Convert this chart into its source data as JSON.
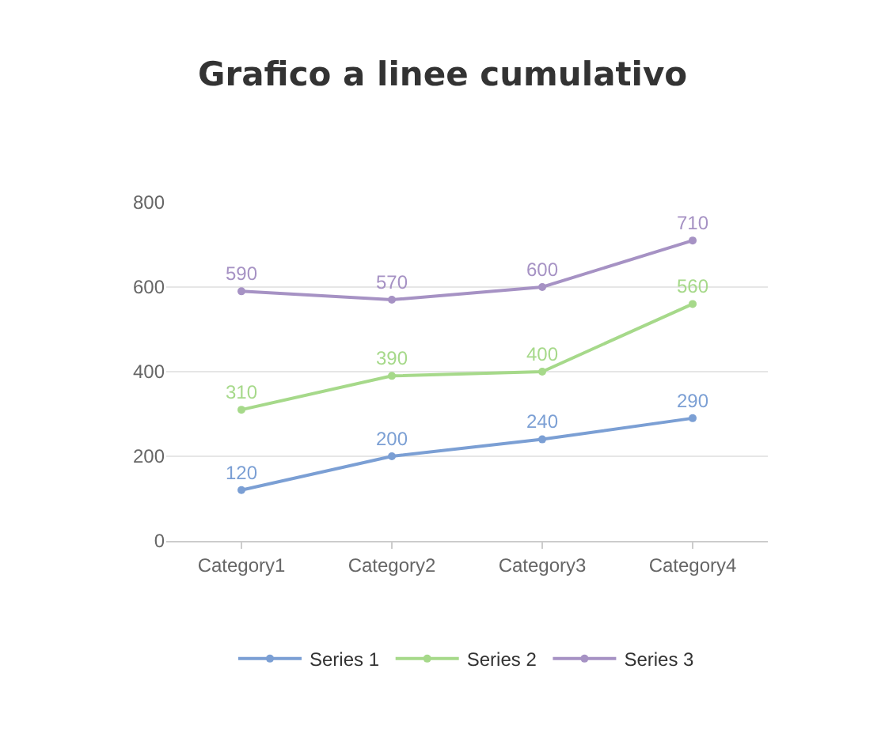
{
  "chart_data": {
    "type": "line",
    "title": "Grafico a linee cumulativo",
    "categories": [
      "Category1",
      "Category2",
      "Category3",
      "Category4"
    ],
    "series": [
      {
        "name": "Series 1",
        "color": "#7b9fd4",
        "values": [
          120,
          200,
          240,
          290
        ]
      },
      {
        "name": "Series 2",
        "color": "#a6d98a",
        "values": [
          310,
          390,
          400,
          560
        ]
      },
      {
        "name": "Series 3",
        "color": "#a692c4",
        "values": [
          590,
          570,
          600,
          710
        ]
      }
    ],
    "ylim": [
      0,
      800
    ],
    "yticks": [
      0,
      200,
      400,
      600,
      800
    ],
    "grid": "y",
    "legend": "bottom",
    "marker": "circle",
    "line_style": "solid",
    "data_labels": true
  }
}
